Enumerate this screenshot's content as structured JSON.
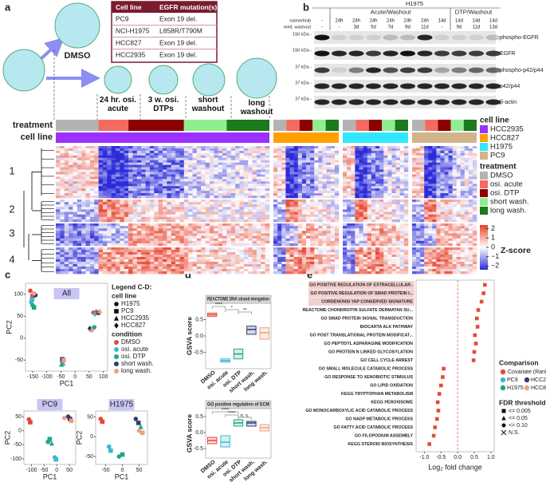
{
  "panel_a": {
    "label": "a",
    "table": {
      "header": [
        "Cell line",
        "EGFR mutation(s)"
      ],
      "rows": [
        [
          "PC9",
          "Exon 19 del."
        ],
        [
          "NCI-H1975",
          "L858R/T790M"
        ],
        [
          "HCC827",
          "Exon 19 del."
        ],
        [
          "HCC2935",
          "Exon 19 del."
        ]
      ]
    },
    "control": "DMSO",
    "conditions": [
      "24 hr. osi. acute",
      "3 w. osi. DTPs",
      "short washout",
      "long washout"
    ],
    "row_labels": [
      "treatment",
      "cell line"
    ],
    "clusters": [
      "1",
      "2",
      "3",
      "4"
    ],
    "legend": {
      "cell_line_title": "cell line",
      "cell_lines": [
        {
          "name": "HCC2935",
          "color": "#9b30ff"
        },
        {
          "name": "HCC827",
          "color": "#ffa000"
        },
        {
          "name": "H1975",
          "color": "#30e8ff"
        },
        {
          "name": "PC9",
          "color": "#d2b48c"
        }
      ],
      "treatment_title": "treatment",
      "treatments": [
        {
          "name": "DMSO",
          "color": "#b3b3b3"
        },
        {
          "name": "osi. acute",
          "color": "#f46a5e"
        },
        {
          "name": "osi. DTP",
          "color": "#8b0000"
        },
        {
          "name": "short wash.",
          "color": "#90ee90"
        },
        {
          "name": "long wash.",
          "color": "#1b7a1b"
        }
      ],
      "zscore": {
        "title": "Z-score",
        "lim": [
          -2.4,
          2.4
        ],
        "ticks": [
          2,
          1,
          0,
          {
            "value": -1,
            "label": "−1"
          },
          {
            "value": -2,
            "label": "−2"
          }
        ]
      }
    }
  },
  "panel_b": {
    "label": "b",
    "cell_line": "H1975",
    "groups": [
      "Acute/Washout",
      "DTP/Washout"
    ],
    "row_titles": [
      "osimertinib",
      "med. washout"
    ],
    "osimertinib": [
      "-",
      "24h",
      "24h",
      "24h",
      "24h",
      "24h",
      "24h",
      "14d",
      "14d",
      "14d",
      "14d"
    ],
    "washout": [
      "-",
      "-",
      "3d",
      "5d",
      "7d",
      "9d",
      "11d",
      "-",
      "9d",
      "11d",
      "13d"
    ],
    "blots": [
      {
        "kda": "150 kDa -",
        "name": "phospho-EGFR"
      },
      {
        "kda": "150 kDa -",
        "name": "EGFR"
      },
      {
        "kda": "37 kDa -",
        "name": "phospho-p42/p44"
      },
      {
        "kda": "37 kDa -",
        "name": "p42/p44"
      },
      {
        "kda": "37 kDa -",
        "name": "β-actin"
      }
    ]
  },
  "panel_c": {
    "label": "c",
    "legend_title": "Legend C-D:",
    "cell_line_title": "cell line",
    "cell_lines": [
      "H1975",
      "PC9",
      "HCC2935",
      "HCC827"
    ],
    "condition_title": "condition"
  },
  "panel_d": {
    "label": "d"
  },
  "panel_e": {
    "label": "e"
  },
  "chart_data": [
    {
      "type": "scatter",
      "title": "All",
      "xlabel": "PC1",
      "ylabel": "PC2",
      "xlim": [
        -175,
        115
      ],
      "ylim": [
        -75,
        125
      ],
      "xticks": [
        -150,
        -100,
        -50,
        0,
        50,
        100
      ],
      "yticks": [
        -50,
        0,
        50,
        100
      ],
      "series": [
        {
          "name": "DMSO",
          "color": "#e4493a",
          "x": [
            -158,
            -150,
            -45,
            75,
            65
          ],
          "y": [
            108,
            96,
            -52,
            60,
            58
          ]
        },
        {
          "name": "osi. acute",
          "color": "#3ab7d0",
          "x": [
            -155,
            -152,
            -42,
            70,
            60
          ],
          "y": [
            82,
            88,
            -58,
            55,
            20
          ]
        },
        {
          "name": "osi. DTP",
          "color": "#1ea58a",
          "x": [
            -150,
            -145,
            -48,
            55,
            68
          ],
          "y": [
            75,
            70,
            -60,
            20,
            25
          ]
        },
        {
          "name": "short wash.",
          "color": "#2d3e73",
          "x": [
            -140,
            -45,
            82,
            52
          ],
          "y": [
            98,
            -48,
            58,
            22
          ]
        },
        {
          "name": "long wash.",
          "color": "#f0a07a",
          "x": [
            -145,
            -40,
            88,
            60
          ],
          "y": [
            102,
            -50,
            62,
            18
          ]
        }
      ]
    },
    {
      "type": "scatter",
      "title": "PC9",
      "xlabel": "PC1",
      "ylabel": "PC2",
      "xlim": [
        -130,
        75
      ],
      "ylim": [
        -120,
        70
      ],
      "xticks": [
        -100,
        -50,
        0,
        50
      ],
      "yticks": [
        -100,
        -50,
        0,
        50
      ],
      "series": [
        {
          "color": "#e4493a",
          "x": [
            -110,
            -105
          ],
          "y": [
            40,
            30
          ]
        },
        {
          "color": "#3ab7d0",
          "x": [
            -8,
            -3
          ],
          "y": [
            -95,
            -102
          ]
        },
        {
          "color": "#1ea58a",
          "x": [
            -35,
            -28,
            -20
          ],
          "y": [
            -40,
            -30,
            -45
          ]
        },
        {
          "color": "#2d3e73",
          "x": [
            45,
            52
          ],
          "y": [
            50,
            42
          ]
        },
        {
          "color": "#f0a07a",
          "x": [
            30,
            58
          ],
          "y": [
            45,
            35
          ]
        }
      ]
    },
    {
      "type": "scatter",
      "title": "H1975",
      "xlabel": "PC1",
      "ylabel": "PC2",
      "xlim": [
        -80,
        75
      ],
      "ylim": [
        -70,
        65
      ],
      "xticks": [
        -50,
        0,
        50
      ],
      "yticks": [
        -50,
        0,
        50
      ],
      "series": [
        {
          "color": "#e4493a",
          "x": [
            -65,
            -60
          ],
          "y": [
            45,
            38
          ]
        },
        {
          "color": "#3ab7d0",
          "x": [
            -40,
            -35
          ],
          "y": [
            -25,
            -35
          ]
        },
        {
          "color": "#1ea58a",
          "x": [
            -10,
            0,
            55
          ],
          "y": [
            -50,
            -45,
            25
          ]
        },
        {
          "color": "#2d3e73",
          "x": [
            40,
            48
          ],
          "y": [
            45,
            35
          ]
        },
        {
          "color": "#f0a07a",
          "x": [
            50,
            60
          ],
          "y": [
            15,
            10
          ]
        }
      ]
    },
    {
      "type": "box",
      "title": "REACTOME DNA strand elongation",
      "ylabel": "GSVA score",
      "categories": [
        "DMSO",
        "osi. acute",
        "osi. DTP",
        "short wash.",
        "long wash."
      ],
      "colors": [
        "#e4493a",
        "#3ab7d0",
        "#1ea58a",
        "#2d3e73",
        "#f0a07a"
      ],
      "q1": [
        0.6,
        -0.8,
        -0.7,
        0.05,
        -0.1
      ],
      "median": [
        0.65,
        -0.75,
        -0.55,
        0.2,
        0.1
      ],
      "q3": [
        0.7,
        -0.7,
        -0.4,
        0.3,
        0.25
      ],
      "ylim": [
        -1,
        1
      ],
      "yticks": [
        {
          "value": -0.5,
          "label": "-0.5"
        },
        {
          "value": 0,
          "label": "0.0"
        },
        0.5
      ],
      "annotations": [
        "****",
        "*",
        "**"
      ]
    },
    {
      "type": "box",
      "title": "GO positive regulation of ECM",
      "ylabel": "GSVA score",
      "categories": [
        "DMSO",
        "osi. acute",
        "osi. DTP",
        "short wash.",
        "long wash."
      ],
      "colors": [
        "#e4493a",
        "#3ab7d0",
        "#1ea58a",
        "#2d3e73",
        "#f0a07a"
      ],
      "q1": [
        -0.35,
        -0.45,
        0.2,
        0.2,
        0.05
      ],
      "median": [
        -0.25,
        -0.3,
        0.3,
        0.3,
        0.15
      ],
      "q3": [
        -0.15,
        -0.1,
        0.4,
        0.35,
        0.25
      ],
      "ylim": [
        -0.8,
        0.75
      ],
      "yticks": [
        {
          "value": -0.5,
          "label": "-0.5"
        },
        {
          "value": 0,
          "label": "0.0"
        },
        0.5
      ],
      "annotations": [
        "****",
        "****",
        "n. s."
      ]
    },
    {
      "type": "dot",
      "xlabel": "Log₂ fold change",
      "categories": [
        "GO POSITIVE REGULATION OF EXTRACELLULAR..",
        "GO POSITIVE REGULATION OF SMAD PROTEIN I...",
        "CORDENONSI YAP CONSERVED SIGNATURE",
        "REACTOME CHONDROITIN SULFATE DERMATAN SU...",
        "GO SMAD PROTEIN SIGNAL TRANSDUCTION",
        "BIOCARTA ALK PATHWAY",
        "GO POST TRANSLATIONAL PROTEIN MODIFICAT...",
        "GO PEPTIDYL ASPARAGINE MODIFICATION",
        "GO PROTEIN N LINKED GLYCOSYLATION",
        "GO CELL CYCLE ARREST",
        "GO SMALL MOLECULE CATABOLIC PROCESS",
        "GO RESPONSE TO XENOBIOTIC STIMULUS",
        "GO LIPID OXIDATION",
        "KEGG TRYPTOPHAN METABOLISM",
        "KEGG PEROXISOME",
        "GO MONOCARBOXYLIC ACID CATABOLIC PROCESS",
        "GO NADP METABOLIC PROCESS",
        "GO FATTY ACID CATABOLIC PROCESS",
        "GO FILOPODIUM ASSEMBLY",
        "KEGG STEROID BIOSYNTHESIS"
      ],
      "series": [
        {
          "name": "Covariate (Ranked)",
          "color": "#e4493a",
          "values": [
            0.82,
            0.78,
            0.72,
            0.62,
            0.58,
            0.6,
            0.52,
            0.55,
            0.5,
            0.48,
            -0.42,
            -0.45,
            -0.5,
            -0.55,
            -0.6,
            -0.58,
            -0.62,
            -0.68,
            -0.72,
            -0.85
          ]
        }
      ],
      "xlim": [
        -1.25,
        1.1
      ],
      "xticks": [
        {
          "value": -1,
          "label": "-1.0"
        },
        -0.5,
        {
          "value": 0,
          "label": "0.0"
        },
        0.5,
        {
          "value": 1,
          "label": "1.0"
        }
      ],
      "legend_title": "Comparison",
      "legend_entries": [
        {
          "name": "PC9",
          "color": "#3ab7d0"
        },
        {
          "name": "HCC2935",
          "color": "#2d3e73"
        },
        {
          "name": "H1975",
          "color": "#1ea58a"
        },
        {
          "name": "HCC827",
          "color": "#f0a07a"
        }
      ],
      "fdr_title": "FDR threshold",
      "fdr_levels": [
        "<= 0.005",
        "<= 0.05",
        "<= 0.10",
        "N.S."
      ]
    }
  ]
}
